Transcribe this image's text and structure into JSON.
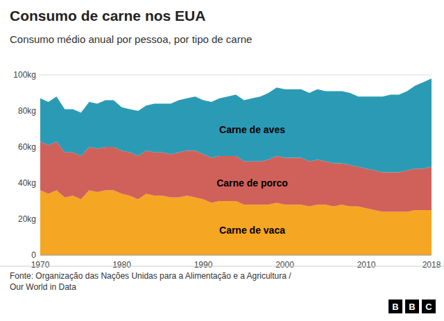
{
  "chart_data": {
    "type": "area",
    "stacked": true,
    "title": "Consumo de carne nos EUA",
    "subtitle": "Consumo médio anual por pessoa, por tipo de carne",
    "annotations": [
      "Fonte: Organização das Nações Unidas para a Alimentação e a Agricultura /\nOur World in Data",
      "BBC"
    ],
    "x": [
      1970,
      1971,
      1972,
      1973,
      1974,
      1975,
      1976,
      1977,
      1978,
      1979,
      1980,
      1981,
      1982,
      1983,
      1984,
      1985,
      1986,
      1987,
      1988,
      1989,
      1990,
      1991,
      1992,
      1993,
      1994,
      1995,
      1996,
      1997,
      1998,
      1999,
      2000,
      2001,
      2002,
      2003,
      2004,
      2005,
      2006,
      2007,
      2008,
      2009,
      2010,
      2011,
      2012,
      2013,
      2014,
      2015,
      2016,
      2017,
      2018
    ],
    "series": [
      {
        "name": "Carne de vaca",
        "color": "#F5A623",
        "values": [
          36,
          34,
          36,
          32,
          33,
          31,
          36,
          35,
          36,
          36,
          34,
          33,
          31,
          34,
          33,
          33,
          32,
          32,
          33,
          32,
          31,
          29,
          30,
          30,
          30,
          28,
          28,
          28,
          28,
          29,
          28,
          28,
          28,
          27,
          28,
          28,
          27,
          28,
          27,
          27,
          26,
          25,
          24,
          24,
          24,
          24,
          25,
          25,
          25
        ]
      },
      {
        "name": "Carne de porco",
        "color": "#D0615A",
        "values": [
          27,
          27,
          27,
          25,
          24,
          24,
          24,
          24,
          24,
          24,
          24,
          24,
          24,
          24,
          24,
          24,
          24,
          25,
          25,
          26,
          25,
          25,
          25,
          25,
          25,
          24,
          24,
          24,
          25,
          26,
          26,
          26,
          26,
          25,
          25,
          24,
          24,
          23,
          23,
          22,
          22,
          22,
          22,
          22,
          22,
          23,
          23,
          23,
          24
        ]
      },
      {
        "name": "Carne de aves",
        "color": "#2B9BB5",
        "values": [
          24,
          24,
          25,
          24,
          24,
          24,
          25,
          25,
          26,
          26,
          24,
          24,
          25,
          25,
          27,
          27,
          28,
          29,
          29,
          30,
          30,
          31,
          32,
          33,
          34,
          34,
          35,
          36,
          37,
          38,
          38,
          38,
          38,
          38,
          39,
          39,
          40,
          40,
          40,
          39,
          40,
          41,
          42,
          43,
          43,
          44,
          46,
          48,
          49
        ]
      }
    ],
    "xlim": [
      1970,
      2018
    ],
    "xticks": [
      1970,
      1980,
      1990,
      2000,
      2010,
      2018
    ],
    "ylim": [
      0,
      100
    ],
    "yticks": [
      0,
      {
        "value": 20,
        "label": "20kg"
      },
      {
        "value": 40,
        "label": "40kg"
      },
      {
        "value": 60,
        "label": "60kg"
      },
      {
        "value": 80,
        "label": "80kg"
      },
      {
        "value": 100,
        "label": "100kg"
      }
    ],
    "grid": true
  }
}
